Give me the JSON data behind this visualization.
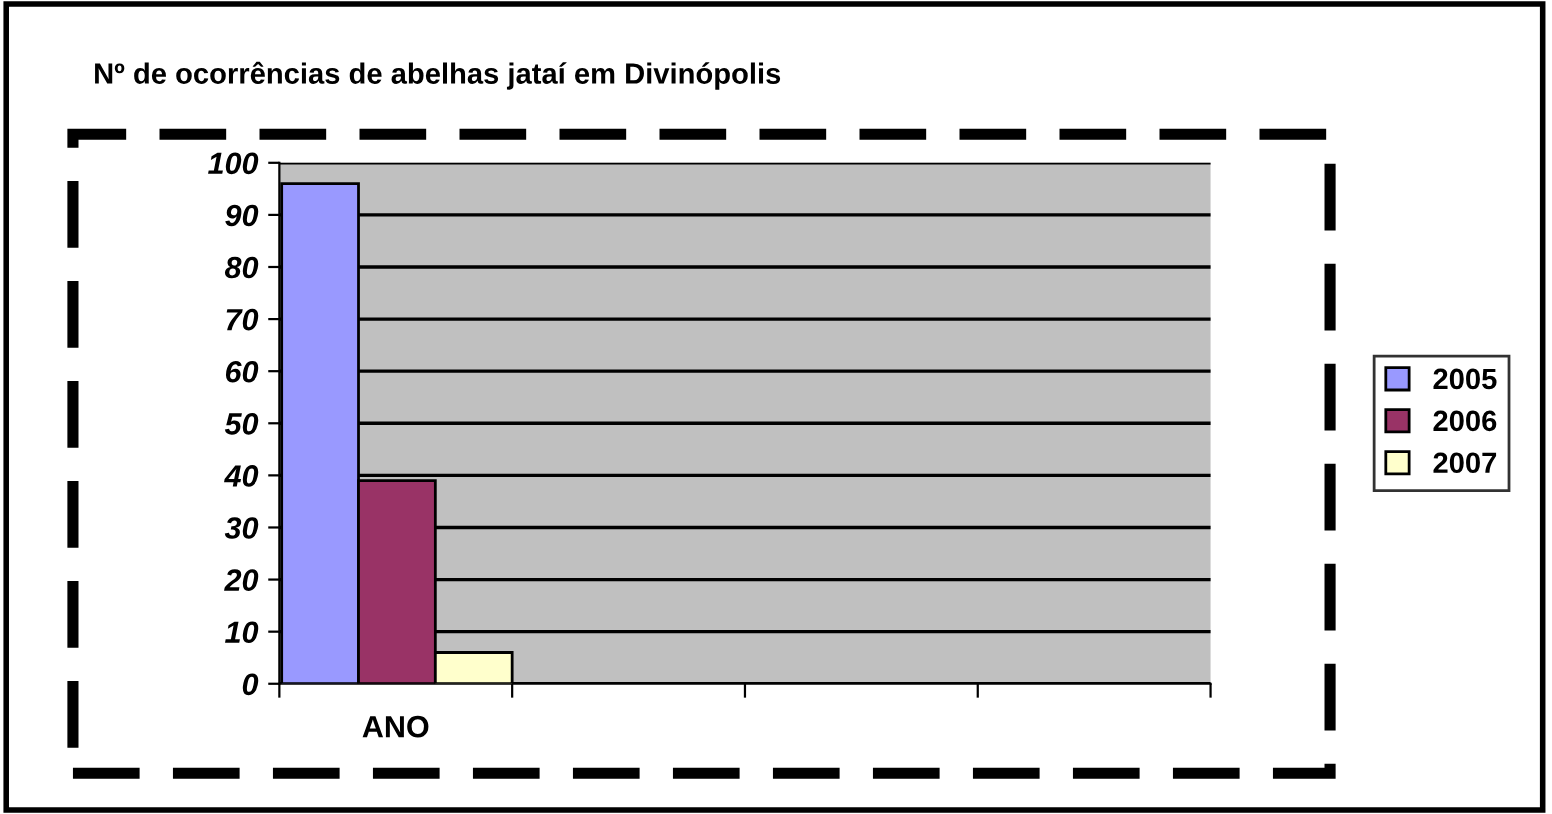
{
  "chart_data": {
    "type": "bar",
    "title": "Nº de ocorrências de abelhas jataí em Divinópolis",
    "categories": [
      "ANO",
      null,
      null,
      null
    ],
    "series": [
      {
        "name": "2005",
        "color": "#9999ff",
        "values": [
          96,
          null,
          null,
          null
        ]
      },
      {
        "name": "2006",
        "color": "#993366",
        "values": [
          39,
          null,
          null,
          null
        ]
      },
      {
        "name": "2007",
        "color": "#ffffcc",
        "values": [
          6,
          null,
          null,
          null
        ]
      }
    ],
    "ylim": [
      0,
      100
    ],
    "yticks": [
      0,
      10,
      20,
      30,
      40,
      50,
      60,
      70,
      80,
      90,
      100
    ],
    "grid": "y",
    "legend": "right"
  }
}
